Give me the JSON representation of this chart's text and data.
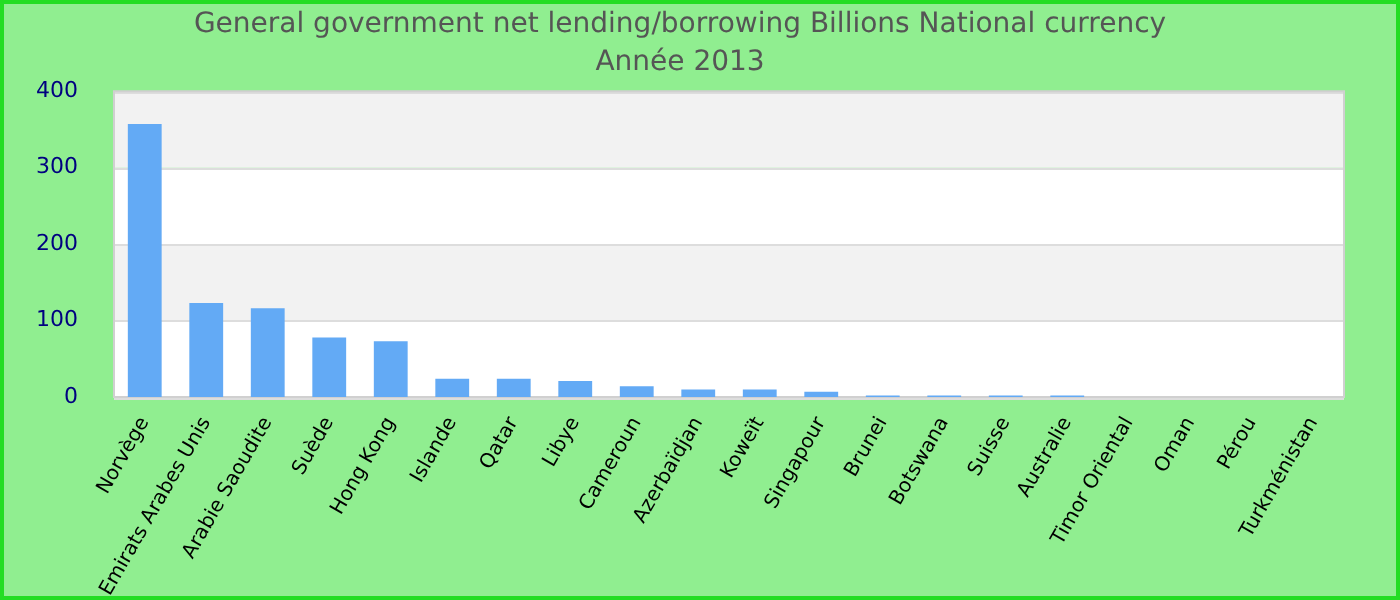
{
  "chart_data": {
    "type": "bar",
    "title": "General government net lending/borrowing Billions National currency",
    "subtitle": "Année 2013",
    "categories": [
      "Norvège",
      "Emirats Arabes Unis",
      "Arabie Saoudite",
      "Suède",
      "Hong Kong",
      "Islande",
      "Qatar",
      "Libye",
      "Cameroun",
      "Azerbaïdjan",
      "Koweït",
      "Singapour",
      "Brunei",
      "Botswana",
      "Suisse",
      "Australie",
      "Timor Oriental",
      "Oman",
      "Pérou",
      "Turkménistan"
    ],
    "values": [
      357,
      123,
      116,
      78,
      73,
      24,
      24,
      21,
      14,
      10,
      10,
      7,
      2,
      2,
      2,
      2,
      0,
      0,
      0,
      0
    ],
    "color": "#63aaf5",
    "ylim": [
      0,
      400
    ],
    "yticks": [
      0,
      100,
      200,
      300,
      400
    ],
    "grid": true,
    "legend": false
  }
}
